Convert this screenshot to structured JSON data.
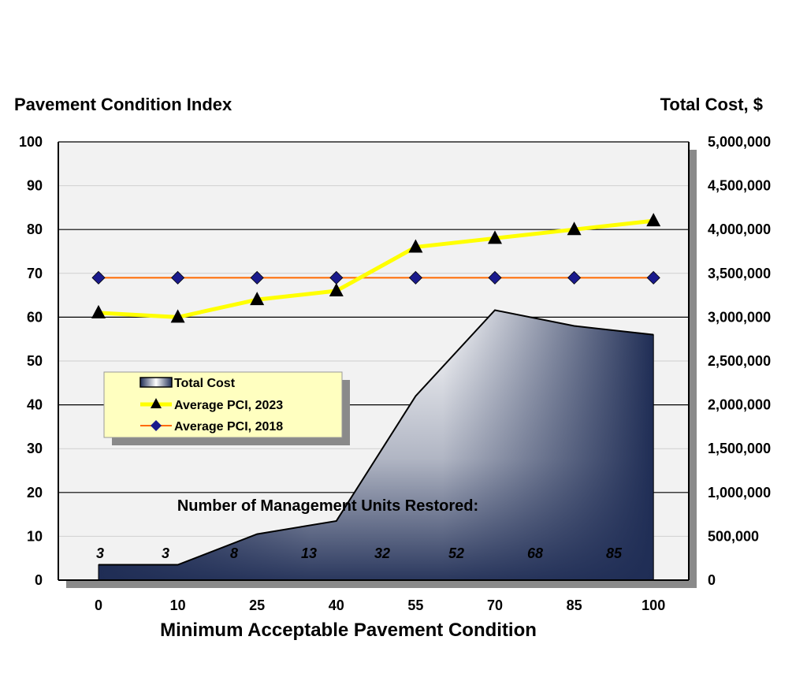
{
  "chart_data": {
    "type": "line",
    "y_left_title": "Pavement Condition Index",
    "y_right_title": "Total Cost, $",
    "x_title": "Minimum Acceptable Pavement Condition",
    "x": [
      0,
      10,
      25,
      40,
      55,
      70,
      85,
      100
    ],
    "x_labels": [
      "0",
      "10",
      "25",
      "40",
      "55",
      "70",
      "85",
      "100"
    ],
    "left_ticks": [
      "0",
      "10",
      "20",
      "30",
      "40",
      "50",
      "60",
      "70",
      "80",
      "90",
      "100"
    ],
    "right_ticks": [
      "0",
      "500,000",
      "1,000,000",
      "1,500,000",
      "2,000,000",
      "2,500,000",
      "3,000,000",
      "3,500,000",
      "4,000,000",
      "4,500,000",
      "5,000,000"
    ],
    "ylim_left": [
      0,
      100
    ],
    "ylim_right": [
      0,
      5000000
    ],
    "grid": true,
    "legend_position": "middle-left",
    "series": [
      {
        "name": "Total Cost",
        "kind": "area",
        "axis": "right",
        "values": [
          175000,
          175000,
          525000,
          675000,
          2100000,
          3080000,
          2900000,
          2800000
        ],
        "color": "#1f2d55"
      },
      {
        "name": "Average PCI, 2023",
        "kind": "line",
        "axis": "left",
        "values": [
          61,
          60,
          64,
          66,
          76,
          78,
          80,
          82
        ],
        "color": "#ffff00",
        "marker": "triangle"
      },
      {
        "name": "Average PCI, 2018",
        "kind": "line",
        "axis": "left",
        "values": [
          69,
          69,
          69,
          69,
          69,
          69,
          69,
          69
        ],
        "color": "#ff6a00",
        "marker": "diamond",
        "marker_color": "#1a1a8c"
      }
    ],
    "units_title": "Number of Management Units Restored:",
    "units_labels": [
      "3",
      "3",
      "8",
      "13",
      "32",
      "52",
      "68",
      "85"
    ]
  }
}
